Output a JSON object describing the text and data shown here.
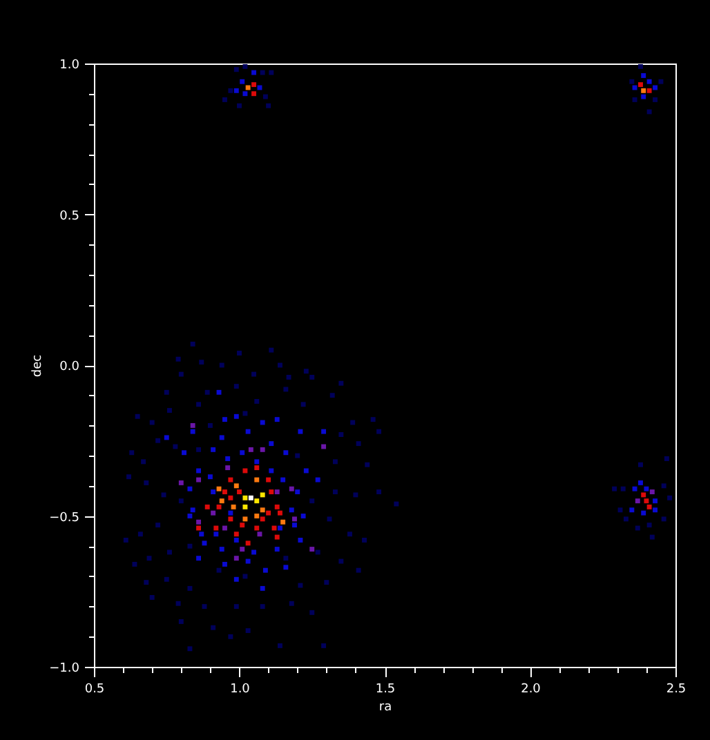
{
  "chart_data": {
    "type": "scatter",
    "xlabel": "ra",
    "ylabel": "dec",
    "marker": "square",
    "grid": false,
    "xlim": [
      0.5,
      2.5
    ],
    "ylim": [
      -1,
      1
    ],
    "xticks": [
      0.5,
      {
        "value": 0.6,
        "label": null
      },
      {
        "value": 0.7,
        "label": null
      },
      {
        "value": 0.8,
        "label": null
      },
      {
        "value": 0.9,
        "label": null
      },
      {
        "value": 1,
        "label": "1.0"
      },
      {
        "value": 1.1,
        "label": null
      },
      {
        "value": 1.2,
        "label": null
      },
      {
        "value": 1.3,
        "label": null
      },
      {
        "value": 1.4,
        "label": null
      },
      1.5,
      {
        "value": 1.6,
        "label": null
      },
      {
        "value": 1.7,
        "label": null
      },
      {
        "value": 1.8,
        "label": null
      },
      {
        "value": 1.9,
        "label": null
      },
      {
        "value": 2,
        "label": "2.0"
      },
      {
        "value": 2.1,
        "label": null
      },
      {
        "value": 2.2,
        "label": null
      },
      {
        "value": 2.3,
        "label": null
      },
      {
        "value": 2.4,
        "label": null
      },
      2.5
    ],
    "yticks": [
      {
        "value": -1,
        "label": "−1.0"
      },
      {
        "value": -0.9,
        "label": null
      },
      {
        "value": -0.8,
        "label": null
      },
      {
        "value": -0.7,
        "label": null
      },
      {
        "value": -0.6,
        "label": null
      },
      {
        "value": -0.5,
        "label": "−0.5"
      },
      {
        "value": -0.4,
        "label": null
      },
      {
        "value": -0.3,
        "label": null
      },
      {
        "value": -0.2,
        "label": null
      },
      {
        "value": -0.1,
        "label": null
      },
      {
        "value": 0,
        "label": "0.0"
      },
      {
        "value": 0.1,
        "label": null
      },
      {
        "value": 0.2,
        "label": null
      },
      {
        "value": 0.3,
        "label": null
      },
      {
        "value": 0.4,
        "label": null
      },
      0.5,
      {
        "value": 0.6,
        "label": null
      },
      {
        "value": 0.7,
        "label": null
      },
      {
        "value": 0.8,
        "label": null
      },
      {
        "value": 0.9,
        "label": null
      },
      {
        "value": 1,
        "label": "1.0"
      }
    ],
    "series": [
      {
        "color": "#00005a",
        "x": [
          0.84,
          1.0,
          1.11,
          0.79,
          0.87,
          0.94,
          1.14,
          1.23,
          0.8,
          1.05,
          1.17,
          1.25,
          1.35,
          0.75,
          0.89,
          0.99,
          1.16,
          1.32,
          0.65,
          0.7,
          0.76,
          0.86,
          1.06,
          1.22,
          1.39,
          1.46,
          1.48,
          0.63,
          0.67,
          0.72,
          0.78,
          1.35,
          1.41,
          1.33,
          1.44,
          1.48,
          1.54,
          0.62,
          0.68,
          0.74,
          1.33,
          1.4,
          0.61,
          0.66,
          0.72,
          1.31,
          1.38,
          1.43,
          0.64,
          0.69,
          0.76,
          1.27,
          1.35,
          1.41,
          0.68,
          0.75,
          0.83,
          1.21,
          1.3,
          0.7,
          0.79,
          0.88,
          0.99,
          1.08,
          1.18,
          1.25,
          0.8,
          0.91,
          1.03,
          1.14,
          0.83,
          1.29,
          0.97,
          0.9,
          1.02,
          1.2,
          0.8,
          0.83,
          1.16,
          1.02,
          0.93,
          1.25,
          0.86,
          0.99,
          1.08,
          1.11,
          0.97,
          0.95,
          1.0,
          1.1,
          1.02,
          1.09,
          2.35,
          2.45,
          2.36,
          2.41,
          2.43,
          2.38,
          2.38,
          2.32,
          2.29,
          2.46,
          2.48,
          2.33,
          2.41,
          2.46,
          2.37,
          2.42,
          2.47,
          2.31
        ],
        "values": [
          0.07,
          0.04,
          0.05,
          0.02,
          0.01,
          0.0,
          0.0,
          -0.02,
          -0.03,
          -0.03,
          -0.04,
          -0.04,
          -0.06,
          -0.09,
          -0.09,
          -0.07,
          -0.08,
          -0.1,
          -0.17,
          -0.19,
          -0.15,
          -0.13,
          -0.12,
          -0.13,
          -0.19,
          -0.18,
          -0.22,
          -0.29,
          -0.32,
          -0.25,
          -0.27,
          -0.23,
          -0.26,
          -0.32,
          -0.33,
          -0.42,
          -0.46,
          -0.37,
          -0.39,
          -0.43,
          -0.42,
          -0.43,
          -0.58,
          -0.56,
          -0.53,
          -0.51,
          -0.56,
          -0.58,
          -0.66,
          -0.64,
          -0.62,
          -0.62,
          -0.65,
          -0.68,
          -0.72,
          -0.71,
          -0.74,
          -0.73,
          -0.72,
          -0.77,
          -0.79,
          -0.8,
          -0.8,
          -0.8,
          -0.79,
          -0.82,
          -0.85,
          -0.87,
          -0.88,
          -0.93,
          -0.94,
          -0.93,
          -0.9,
          -0.2,
          -0.16,
          -0.3,
          -0.45,
          -0.6,
          -0.64,
          -0.7,
          -0.68,
          -0.45,
          -0.28,
          0.98,
          0.97,
          0.97,
          0.91,
          0.88,
          0.86,
          0.86,
          0.99,
          0.89,
          0.94,
          0.94,
          0.88,
          0.84,
          0.88,
          0.99,
          -0.33,
          -0.41,
          -0.41,
          -0.4,
          -0.44,
          -0.51,
          -0.53,
          -0.51,
          -0.54,
          -0.57,
          -0.31,
          -0.48
        ]
      },
      {
        "color": "#0a0ad2",
        "x": [
          0.93,
          0.95,
          0.99,
          1.08,
          1.13,
          0.84,
          0.94,
          1.03,
          1.21,
          1.29,
          0.75,
          0.81,
          0.91,
          1.01,
          1.11,
          1.16,
          1.23,
          1.27,
          0.86,
          0.9,
          0.83,
          0.91,
          1.2,
          0.84,
          0.83,
          1.18,
          1.22,
          0.87,
          0.92,
          0.99,
          1.14,
          1.19,
          0.88,
          0.94,
          1.05,
          1.13,
          1.21,
          0.86,
          0.95,
          1.03,
          1.09,
          1.16,
          0.99,
          1.08,
          0.97,
          1.11,
          1.15,
          0.96,
          1.06,
          1.01,
          0.99,
          1.02,
          1.07,
          1.05,
          2.39,
          2.36,
          2.41,
          2.39,
          2.43,
          2.36,
          2.4,
          2.43,
          2.35,
          2.39,
          2.43,
          2.38
        ],
        "values": [
          -0.09,
          -0.18,
          -0.17,
          -0.19,
          -0.18,
          -0.22,
          -0.24,
          -0.22,
          -0.22,
          -0.22,
          -0.24,
          -0.29,
          -0.28,
          -0.29,
          -0.26,
          -0.29,
          -0.35,
          -0.38,
          -0.35,
          -0.37,
          -0.41,
          -0.42,
          -0.42,
          -0.48,
          -0.5,
          -0.48,
          -0.5,
          -0.56,
          -0.56,
          -0.58,
          -0.54,
          -0.53,
          -0.59,
          -0.61,
          -0.62,
          -0.61,
          -0.58,
          -0.64,
          -0.66,
          -0.65,
          -0.68,
          -0.67,
          -0.71,
          -0.74,
          -0.49,
          -0.35,
          -0.38,
          -0.31,
          -0.32,
          0.94,
          0.91,
          0.9,
          0.92,
          0.97,
          0.96,
          0.92,
          0.94,
          0.89,
          0.92,
          -0.41,
          -0.41,
          -0.45,
          -0.48,
          -0.49,
          -0.48,
          -0.39
        ]
      },
      {
        "color": "#6b16a8",
        "x": [
          0.86,
          0.96,
          1.04,
          1.08,
          0.91,
          0.86,
          0.95,
          1.07,
          1.13,
          1.18,
          1.25,
          0.99,
          1.01,
          0.8,
          0.84,
          1.29,
          1.19,
          2.37,
          2.42
        ],
        "values": [
          -0.38,
          -0.34,
          -0.28,
          -0.28,
          -0.49,
          -0.52,
          -0.54,
          -0.56,
          -0.42,
          -0.41,
          -0.61,
          -0.64,
          -0.61,
          -0.39,
          -0.2,
          -0.27,
          -0.51,
          -0.45,
          -0.42
        ]
      },
      {
        "color": "#dc0a0a",
        "x": [
          1.06,
          1.02,
          0.97,
          1.1,
          0.95,
          1.0,
          1.11,
          0.89,
          0.93,
          1.13,
          0.97,
          1.08,
          1.1,
          0.86,
          0.92,
          1.01,
          1.06,
          1.12,
          0.99,
          1.03,
          1.13,
          0.97,
          1.14,
          1.05,
          1.05,
          2.38,
          2.41,
          2.4,
          2.39,
          2.41
        ],
        "values": [
          -0.34,
          -0.35,
          -0.38,
          -0.38,
          -0.42,
          -0.42,
          -0.42,
          -0.47,
          -0.47,
          -0.47,
          -0.51,
          -0.51,
          -0.49,
          -0.54,
          -0.54,
          -0.53,
          -0.54,
          -0.54,
          -0.56,
          -0.59,
          -0.57,
          -0.44,
          -0.49,
          0.93,
          0.9,
          0.93,
          0.91,
          -0.45,
          -0.43,
          -0.47
        ]
      },
      {
        "color": "#ff7a10",
        "x": [
          1.06,
          0.99,
          0.93,
          0.98,
          1.08,
          1.06,
          1.02,
          0.94,
          1.15,
          1.03,
          2.39
        ],
        "values": [
          -0.38,
          -0.4,
          -0.41,
          -0.47,
          -0.48,
          -0.5,
          -0.51,
          -0.45,
          -0.52,
          0.92,
          0.91
        ]
      },
      {
        "color": "#ffe600",
        "x": [
          1.06,
          1.02,
          1.02,
          1.08
        ],
        "values": [
          -0.45,
          -0.47,
          -0.44,
          -0.43
        ]
      },
      {
        "color": "#ffffff",
        "x": [
          1.04
        ],
        "values": [
          -0.44
        ]
      }
    ]
  }
}
